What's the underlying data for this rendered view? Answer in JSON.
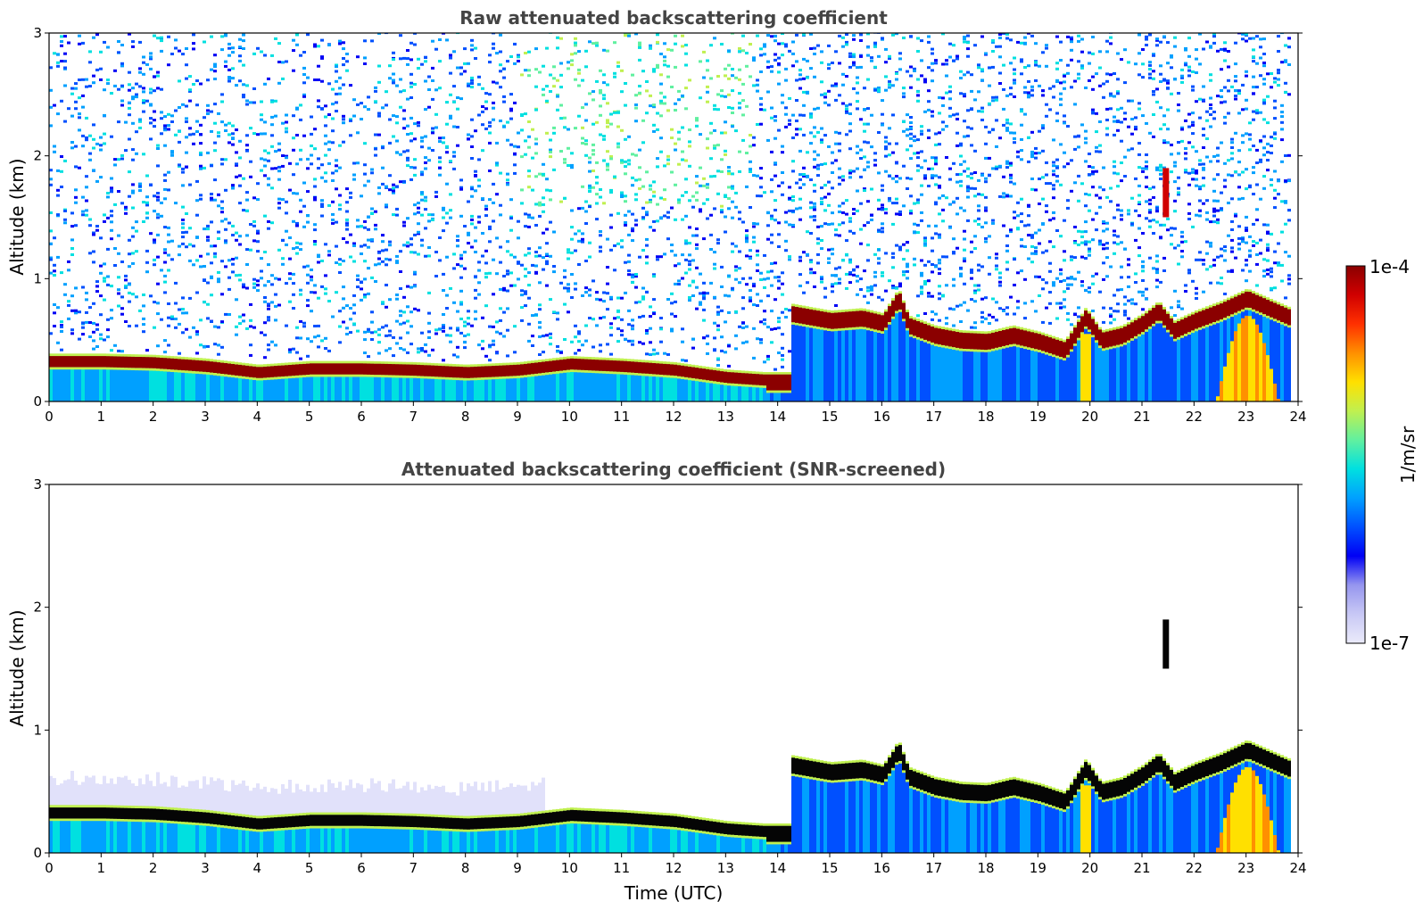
{
  "chart_data": [
    {
      "type": "heatmap",
      "title": "Raw attenuated backscattering coefficient",
      "xlabel": "",
      "ylabel": "Altitude (km)",
      "xlim": [
        0,
        24
      ],
      "ylim": [
        0,
        3
      ],
      "xticks": [
        "0",
        "1",
        "2",
        "3",
        "4",
        "5",
        "6",
        "7",
        "8",
        "9",
        "10",
        "11",
        "12",
        "13",
        "14",
        "15",
        "16",
        "17",
        "18",
        "19",
        "20",
        "21",
        "22",
        "23",
        "24"
      ],
      "yticks": [
        "0",
        "1",
        "2",
        "3"
      ],
      "screened": false,
      "layer_top_km": [
        [
          0,
          0.37
        ],
        [
          1,
          0.37
        ],
        [
          2,
          0.36
        ],
        [
          3,
          0.33
        ],
        [
          4,
          0.28
        ],
        [
          5,
          0.31
        ],
        [
          6,
          0.31
        ],
        [
          7,
          0.3
        ],
        [
          8,
          0.28
        ],
        [
          9,
          0.3
        ],
        [
          10,
          0.35
        ],
        [
          11,
          0.33
        ],
        [
          12,
          0.3
        ],
        [
          13,
          0.24
        ],
        [
          13.7,
          0.22
        ],
        [
          14.2,
          0.78
        ],
        [
          15,
          0.72
        ],
        [
          15.6,
          0.74
        ],
        [
          16,
          0.7
        ],
        [
          16.3,
          0.9
        ],
        [
          16.5,
          0.68
        ],
        [
          17,
          0.6
        ],
        [
          17.5,
          0.56
        ],
        [
          18,
          0.55
        ],
        [
          18.5,
          0.6
        ],
        [
          19,
          0.55
        ],
        [
          19.5,
          0.48
        ],
        [
          19.9,
          0.75
        ],
        [
          20.2,
          0.56
        ],
        [
          20.6,
          0.6
        ],
        [
          21,
          0.7
        ],
        [
          21.3,
          0.8
        ],
        [
          21.6,
          0.64
        ],
        [
          22,
          0.72
        ],
        [
          22.5,
          0.8
        ],
        [
          23,
          0.9
        ],
        [
          23.8,
          0.75
        ]
      ],
      "feature_notes": [
        "strong red layer near 0.3 km from 0 to 13.7 h",
        "elevated layer 0.5-0.8 km from 14.2 to 23 h",
        "thin streak near 1.5-1.9 km at 21.4-21.5 h",
        "yellow plume from 22.5 to 23.5 h below 0.8 km"
      ]
    },
    {
      "type": "heatmap",
      "title": "Attenuated backscattering coefficient (SNR-screened)",
      "xlabel": "Time (UTC)",
      "ylabel": "Altitude (km)",
      "xlim": [
        0,
        24
      ],
      "ylim": [
        0,
        3
      ],
      "xticks": [
        "0",
        "1",
        "2",
        "3",
        "4",
        "5",
        "6",
        "7",
        "8",
        "9",
        "10",
        "11",
        "12",
        "13",
        "14",
        "15",
        "16",
        "17",
        "18",
        "19",
        "20",
        "21",
        "22",
        "23",
        "24"
      ],
      "yticks": [
        "0",
        "1",
        "2",
        "3"
      ],
      "screened": true
    }
  ],
  "colorbar": {
    "label": "1/m/sr",
    "max_label": "1e-4",
    "min_label": "1e-7",
    "scale": "log",
    "range": [
      1e-07,
      0.0001
    ],
    "colors": [
      "#ebebfa",
      "#c8c8f5",
      "#9696ef",
      "#0000f5",
      "#0050ff",
      "#00a0ff",
      "#00e0e0",
      "#60f0a0",
      "#c0f050",
      "#ffe000",
      "#ff9000",
      "#ff3000",
      "#d00000",
      "#8b0000"
    ]
  }
}
